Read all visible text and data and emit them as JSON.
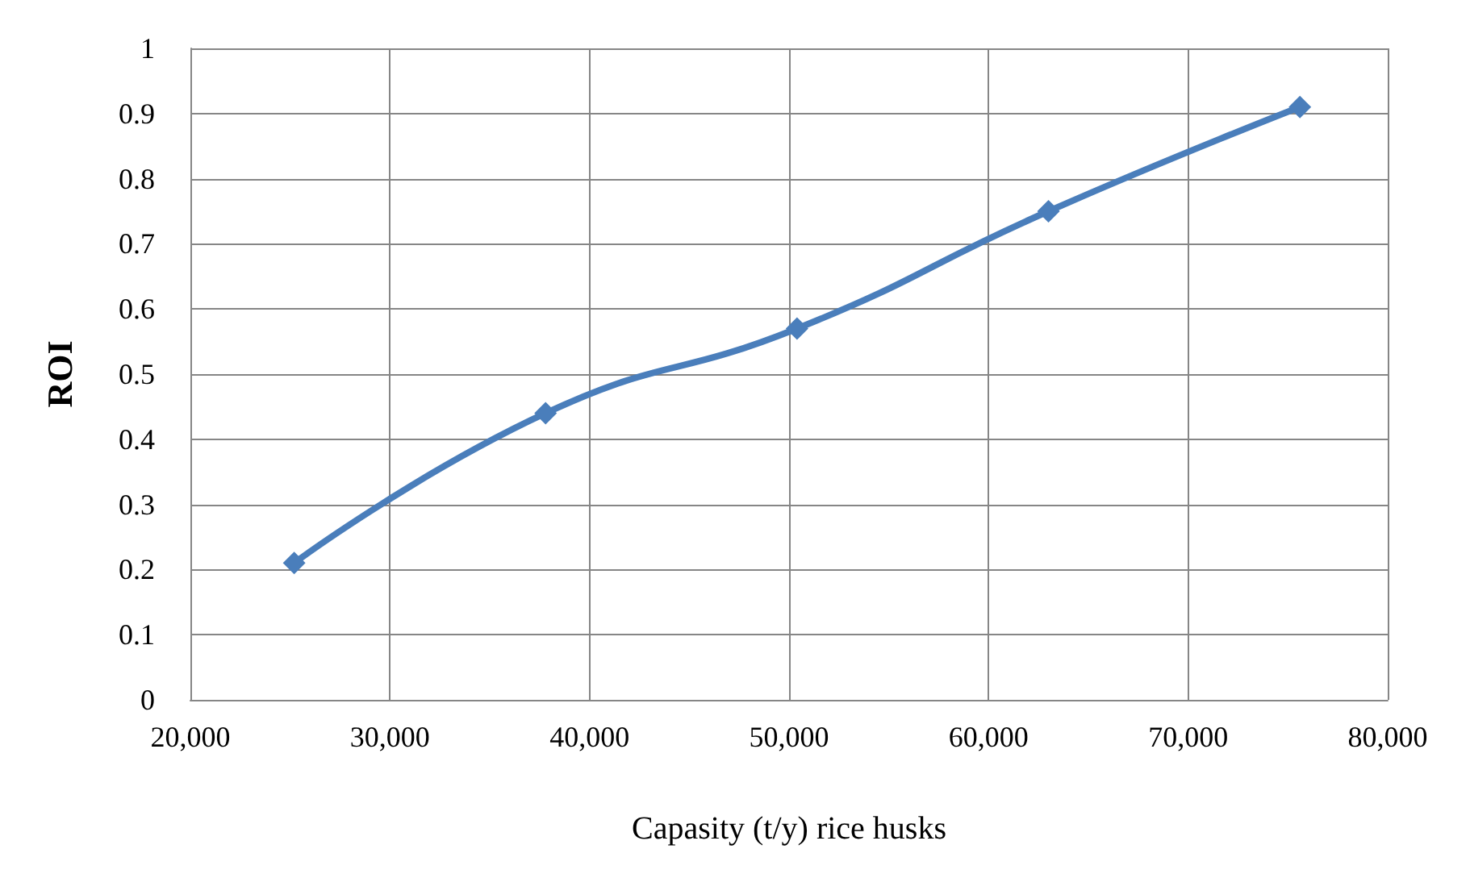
{
  "chart_data": {
    "type": "line",
    "xlabel": "Capasity (t/y) rice husks",
    "ylabel": "ROI",
    "x": [
      25200,
      37800,
      50400,
      63000,
      75600
    ],
    "series": [
      {
        "color": "#4a7ebb",
        "values": [
          0.21,
          0.44,
          0.57,
          0.75,
          0.91
        ]
      }
    ],
    "xlim": [
      20000,
      80000
    ],
    "xticks": [
      {
        "value": 20000,
        "label": "20,000"
      },
      {
        "value": 30000,
        "label": "30,000"
      },
      {
        "value": 40000,
        "label": "40,000"
      },
      {
        "value": 50000,
        "label": "50,000"
      },
      {
        "value": 60000,
        "label": "60,000"
      },
      {
        "value": 70000,
        "label": "70,000"
      },
      {
        "value": 80000,
        "label": "80,000"
      }
    ],
    "ylim": [
      0,
      1
    ],
    "yticks": [
      0,
      0.1,
      0.2,
      0.3,
      0.4,
      0.5,
      0.6,
      0.7,
      0.8,
      0.9,
      1
    ],
    "grid": true,
    "marker": "diamond",
    "line_style": "solid"
  }
}
